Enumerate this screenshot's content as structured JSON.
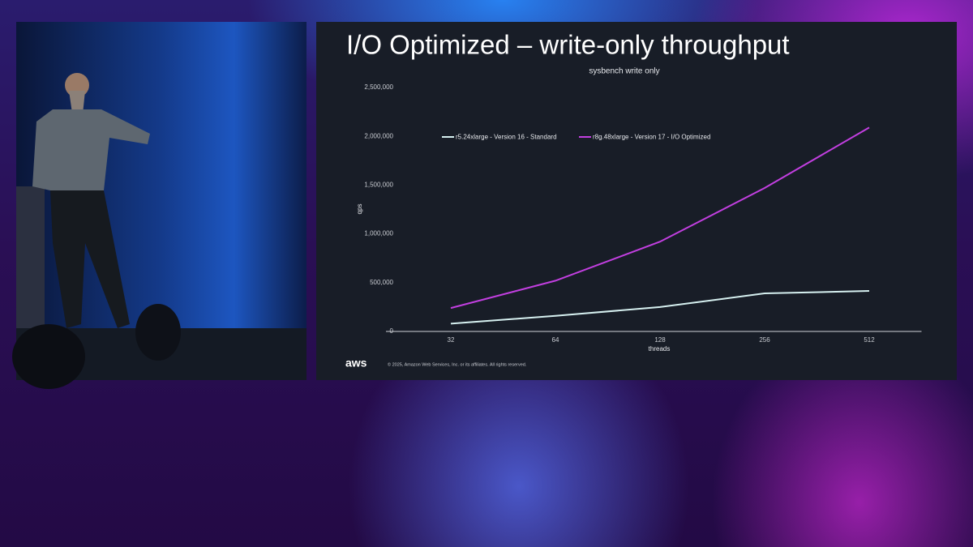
{
  "chart_data": {
    "type": "line",
    "title": "I/O Optimized – write-only throughput",
    "subtitle": "sysbench write only",
    "x_label": "threads",
    "y_label": "qps",
    "categories": [
      "32",
      "64",
      "128",
      "256",
      "512"
    ],
    "series": [
      {
        "name": "r5.24xlarge - Version 16 - Standard",
        "color": "#d6f0f0",
        "values": [
          80000,
          160000,
          250000,
          390000,
          415000
        ]
      },
      {
        "name": "r8g.48xlarge - Version 17 - I/O Optimized",
        "color": "#c23fe0",
        "values": [
          240000,
          520000,
          920000,
          1470000,
          2090000
        ]
      }
    ],
    "ylim": [
      0,
      2500000
    ],
    "yticks": [
      0,
      {
        "value": 500000,
        "label": "500,000"
      },
      {
        "value": 1000000,
        "label": "1,000,000"
      },
      {
        "value": 1500000,
        "label": "1,500,000"
      },
      {
        "value": 2000000,
        "label": "2,000,000"
      },
      {
        "value": 2500000,
        "label": "2,500,000"
      }
    ],
    "grid": false
  },
  "slide": {
    "logo": "aws",
    "copyright": "© 2025, Amazon Web Services, Inc. or its affiliates. All rights reserved."
  }
}
